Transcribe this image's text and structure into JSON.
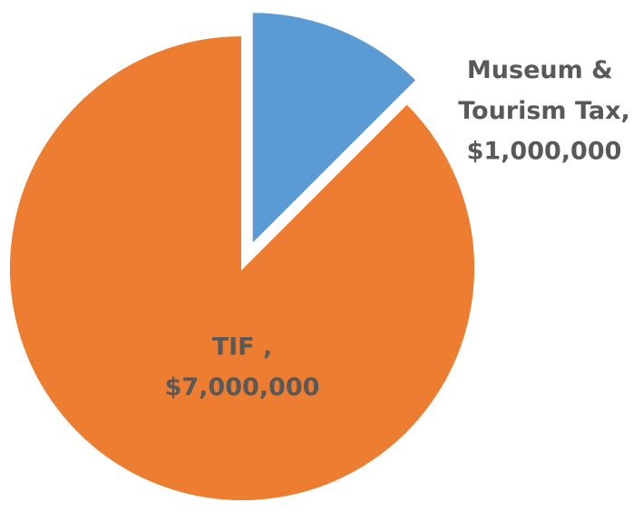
{
  "chart_data": {
    "type": "pie",
    "categories": [
      "Museum & Tourism Tax,",
      "TIF ,"
    ],
    "values": [
      1000000,
      7000000
    ],
    "value_labels": [
      "$1,000,000",
      "$7,000,000"
    ],
    "colors": [
      "#5b9bd5",
      "#ed7d31"
    ]
  }
}
